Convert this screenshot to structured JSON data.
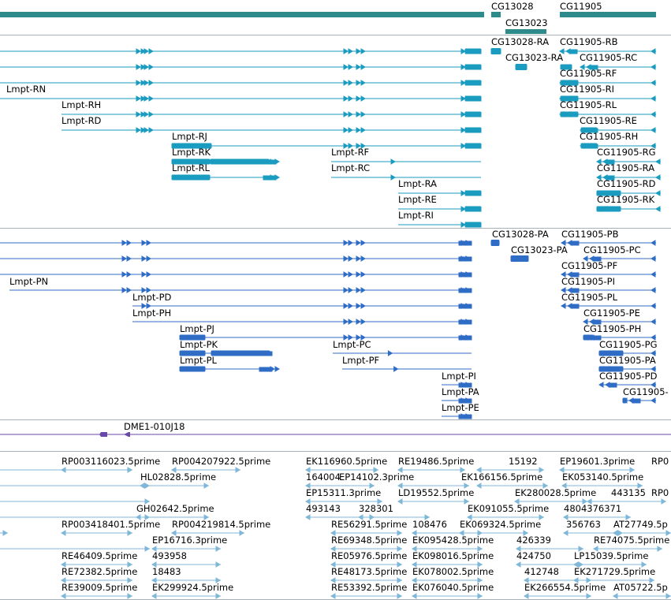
{
  "genes": {
    "labels": [
      "CG13028",
      "CG11905",
      "CG13023"
    ]
  },
  "transcripts": {
    "labels": [
      "CG13028-RA",
      "CG11905-RB",
      "CG13023-RA",
      "CG11905-RC",
      "CG11905-RF",
      "Lmpt-RN",
      "CG11905-RI",
      "Lmpt-RH",
      "CG11905-RL",
      "Lmpt-RD",
      "CG11905-RE",
      "Lmpt-RJ",
      "CG11905-RH",
      "Lmpt-RK",
      "Lmpt-RF",
      "CG11905-RG",
      "Lmpt-RL",
      "Lmpt-RC",
      "CG11905-RA",
      "Lmpt-RA",
      "CG11905-RD",
      "Lmpt-RE",
      "CG11905-RK",
      "Lmpt-RI"
    ]
  },
  "proteins": {
    "labels": [
      "CG13028-PA",
      "CG11905-PB",
      "CG13023-PA",
      "CG11905-PC",
      "CG11905-PF",
      "Lmpt-PN",
      "CG11905-PI",
      "Lmpt-PD",
      "CG11905-PL",
      "Lmpt-PH",
      "CG11905-PE",
      "Lmpt-PJ",
      "CG11905-PH",
      "Lmpt-PK",
      "Lmpt-PC",
      "CG11905-PG",
      "Lmpt-PL",
      "Lmpt-PF",
      "CG11905-PA",
      "Lmpt-PI",
      "CG11905-PD",
      "Lmpt-PA",
      "CG11905-",
      "Lmpt-PE"
    ]
  },
  "clones": {
    "labels": [
      "DME1-010J18"
    ]
  },
  "ests": {
    "labels": [
      "RP003116023.5prime",
      "RP004207922.5prime",
      "EK116960.5prime",
      "RE19486.5prime",
      "15192",
      "EP19601.3prime",
      "RP0",
      "HL02828.5prime",
      "164004",
      "EP14102.3prime",
      "EK166156.5prime",
      "EK053140.5prime",
      "EP15311.3prime",
      "LD19552.5prime",
      "EK280028.5prime",
      "443135",
      "RP0",
      "GH02642.5prime",
      "493143",
      "328301",
      "EK091055.5prime",
      "4804376371",
      "RP003418401.5prime",
      "RP004219814.5prime",
      "RE56291.5prime",
      "108476",
      "EK069324.5prime",
      "356763",
      "AT27749.5p",
      "EP16716.3prime",
      "RE69348.5prime",
      "EK095428.5prime",
      "426339",
      "RE74075.5prime",
      "RE46409.5prime",
      "493958",
      "RE05976.5prime",
      "EK098016.5prime",
      "424750",
      "LP15039.5prime",
      "RE72382.5prime",
      "18483",
      "RE48173.5prime",
      "EK078002.5prime",
      "412748",
      "EK271729.5prime",
      "RE39009.5prime",
      "EK299924.5prime",
      "RE53392.5prime",
      "EK076040.5prime",
      "EK266554.5prime",
      "AT05722.5p"
    ]
  },
  "colors": {
    "gene": "#2e8b8b",
    "transcript": "#1a9bc0",
    "protein": "#2f6cc6",
    "clone": "#6a4aa8",
    "est": "#7fb7d8",
    "separator": "#a8b0b8"
  }
}
